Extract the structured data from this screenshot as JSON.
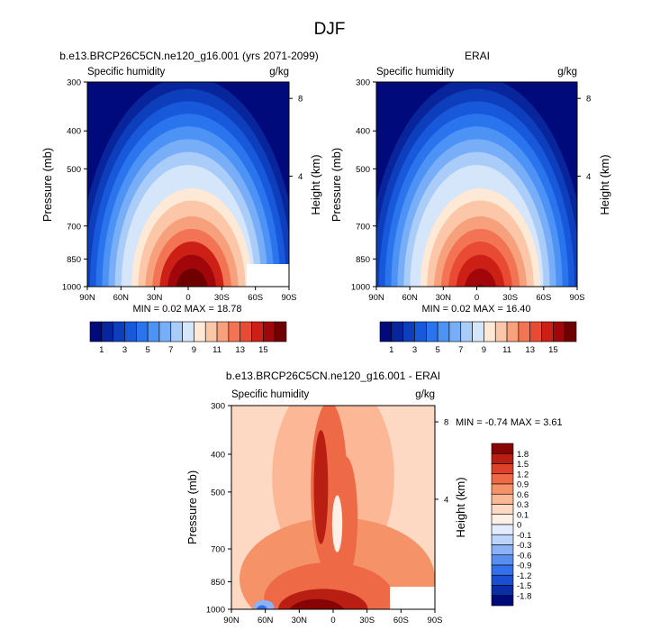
{
  "figure_title": "DJF",
  "colors": {
    "sequential": [
      "#000a7a",
      "#08259c",
      "#0d3fbd",
      "#1759da",
      "#2a75ee",
      "#4d92f5",
      "#78adf7",
      "#a9cdf8",
      "#d6e6fa",
      "#fde9d6",
      "#fbc7a8",
      "#f7a07c",
      "#f27454",
      "#e84a33",
      "#cc2016",
      "#a0060a",
      "#6e0000"
    ],
    "diverging": [
      "#000a7a",
      "#0b2da6",
      "#1a4fd0",
      "#3470ea",
      "#5a8ff2",
      "#8bb1f6",
      "#bcd4fa",
      "#e3ecfd",
      "#fdf0e6",
      "#fdd8c2",
      "#fbb796",
      "#f69268",
      "#ee6a46",
      "#dd4228",
      "#b81e12",
      "#870404"
    ]
  },
  "chart_data": [
    {
      "type": "contour",
      "panel": "model",
      "title": "b.e13.BRCP26C5CN.ne120_g16.001 (yrs 2071-2099)",
      "left_label": "Specific humidity",
      "right_label": "g/kg",
      "ylabel": "Pressure (mb)",
      "ylabel_right": "Height (km)",
      "x_ticks": [
        "90N",
        "60N",
        "30N",
        "0",
        "30S",
        "60S",
        "90S"
      ],
      "y_ticks": [
        "300",
        "400",
        "500",
        "700",
        "850",
        "1000"
      ],
      "y_ticks_right": [
        "8",
        "4"
      ],
      "stats": "MIN =  0.02  MAX = 18.78",
      "min": 0.02,
      "max": 18.78,
      "colorbar": {
        "orientation": "horizontal",
        "levels": [
          1,
          2,
          3,
          4,
          5,
          6,
          7,
          8,
          9,
          10,
          11,
          12,
          13,
          14,
          15,
          16
        ],
        "labels": [
          "1",
          "3",
          "5",
          "7",
          "9",
          "11",
          "13",
          "15"
        ]
      }
    },
    {
      "type": "contour",
      "panel": "obs",
      "title": "ERAI",
      "left_label": "Specific humidity",
      "right_label": "g/kg",
      "ylabel": "Pressure (mb)",
      "ylabel_right": "Height (km)",
      "x_ticks": [
        "90N",
        "60N",
        "30N",
        "0",
        "30S",
        "60S",
        "90S"
      ],
      "y_ticks": [
        "300",
        "400",
        "500",
        "700",
        "850",
        "1000"
      ],
      "y_ticks_right": [
        "8",
        "4"
      ],
      "stats": "MIN =  0.02  MAX = 16.40",
      "min": 0.02,
      "max": 16.4,
      "colorbar": {
        "orientation": "horizontal",
        "levels": [
          1,
          2,
          3,
          4,
          5,
          6,
          7,
          8,
          9,
          10,
          11,
          12,
          13,
          14,
          15,
          16
        ],
        "labels": [
          "1",
          "3",
          "5",
          "7",
          "9",
          "11",
          "13",
          "15"
        ]
      }
    },
    {
      "type": "contour",
      "panel": "diff",
      "title": "b.e13.BRCP26C5CN.ne120_g16.001 - ERAI",
      "left_label": "Specific humidity",
      "right_label": "g/kg",
      "ylabel": "Pressure (mb)",
      "ylabel_right": "Height (km)",
      "x_ticks": [
        "90N",
        "60N",
        "30N",
        "0",
        "30S",
        "60S",
        "90S"
      ],
      "y_ticks": [
        "300",
        "400",
        "500",
        "700",
        "850",
        "1000"
      ],
      "y_ticks_right": [
        "8",
        "4"
      ],
      "stats": "MIN = -0.74  MAX =  3.61",
      "min": -0.74,
      "max": 3.61,
      "colorbar": {
        "orientation": "vertical",
        "labels": [
          "1.8",
          "1.5",
          "1.2",
          "0.9",
          "0.6",
          "0.3",
          "0.1",
          "0",
          "-0.1",
          "-0.3",
          "-0.6",
          "-0.9",
          "-1.2",
          "-1.5",
          "-1.8"
        ]
      }
    }
  ]
}
